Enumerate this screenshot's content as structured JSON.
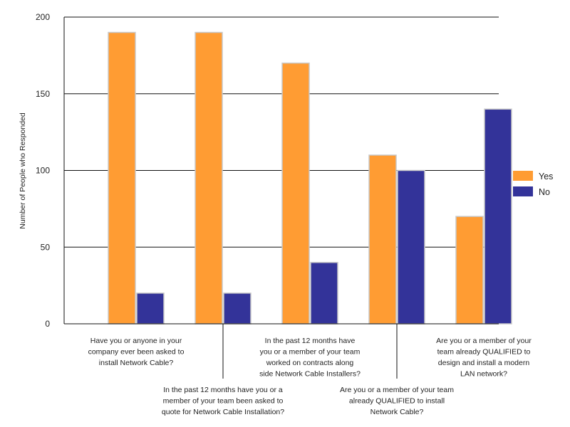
{
  "chart_data": {
    "type": "bar",
    "ylabel": "Number of People who Responded",
    "ylim": [
      0,
      200
    ],
    "yticks": [
      "0",
      "50",
      "100",
      "150",
      "200"
    ],
    "grid": true,
    "legend_position": "right",
    "categories": [
      "Have you or anyone in your company ever been asked to install Network Cable?",
      "In the past 12 months have you or a member of your team been asked to quote for Network Cable Installation?",
      "In the past 12 months have you or a member of your team worked on contracts along side Network Cable Installers?",
      "Are you or a member of your team already QUALIFIED to install Network Cable?",
      "Are you or a member of your team already QUALIFIED to design and install a modern LAN network?"
    ],
    "category_label_lines": [
      [
        "Have you or anyone in your",
        "company ever been asked to",
        "install Network Cable?"
      ],
      [
        "In the past 12 months have you or a",
        "member of your team been asked to",
        "quote for Network Cable Installation?"
      ],
      [
        "In the past 12 months have",
        "you or a member of your team",
        "worked on contracts along",
        "side Network Cable Installers?"
      ],
      [
        "Are you or a member of your team",
        "already QUALIFIED to install",
        "Network Cable?"
      ],
      [
        "Are you or a member of your",
        "team already QUALIFIED to",
        "design and install a modern",
        "LAN network?"
      ]
    ],
    "series": [
      {
        "name": "Yes",
        "color": "#FF9C33",
        "values": [
          190,
          190,
          170,
          110,
          70
        ]
      },
      {
        "name": "No",
        "color": "#333399",
        "values": [
          20,
          20,
          40,
          100,
          140
        ]
      }
    ]
  }
}
